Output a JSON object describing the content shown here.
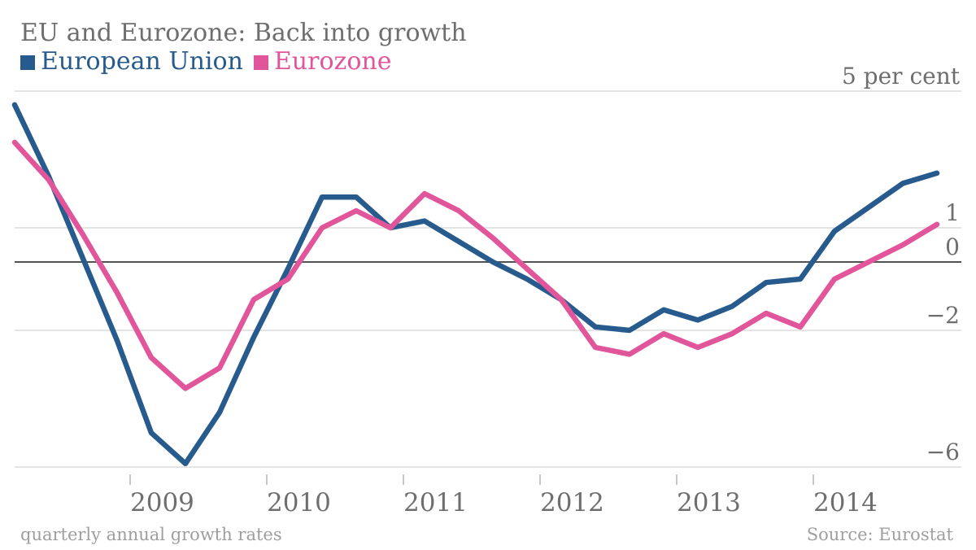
{
  "title": "EU and Eurozone: Back into growth",
  "legend": {
    "items": [
      {
        "label": "European Union",
        "color": "#275b8d"
      },
      {
        "label": "Eurozone",
        "color": "#e1559b"
      }
    ]
  },
  "footer": {
    "left_note": "quarterly annual growth rates",
    "right_source": "Source: Eurostat"
  },
  "colors": {
    "eu_blue": "#275b8d",
    "eurozone_pink": "#e1559b",
    "text_gray": "#6e6e6e",
    "footer_gray": "#9e9e9e",
    "gridline": "#e4e4e4",
    "zero_line": "#525252",
    "tick": "#c9c9c9"
  },
  "chart_data": {
    "type": "line",
    "title": "EU and Eurozone: Back into growth",
    "x_note": "quarterly annual growth rates",
    "source": "Source: Eurostat",
    "grid": "horizontal-only",
    "legend_position": "top-left",
    "categories": [
      "2008 Q1",
      "2008 Q2",
      "2008 Q3",
      "2008 Q4",
      "2009 Q1",
      "2009 Q2",
      "2009 Q3",
      "2009 Q4",
      "2010 Q1",
      "2010 Q2",
      "2010 Q3",
      "2010 Q4",
      "2011 Q1",
      "2011 Q2",
      "2011 Q3",
      "2011 Q4",
      "2012 Q1",
      "2012 Q2",
      "2012 Q3",
      "2012 Q4",
      "2013 Q1",
      "2013 Q2",
      "2013 Q3",
      "2013 Q4",
      "2014 Q1",
      "2014 Q2",
      "2014 Q3",
      "2014 Q4"
    ],
    "series": [
      {
        "name": "European Union",
        "color": "#275b8d",
        "values": [
          4.6,
          2.5,
          0.1,
          -2.3,
          -5.0,
          -5.9,
          -4.4,
          -2.2,
          -0.2,
          1.9,
          1.9,
          1.0,
          1.2,
          0.6,
          0.0,
          -0.5,
          -1.1,
          -1.9,
          -2.0,
          -1.4,
          -1.7,
          -1.3,
          -0.6,
          -0.5,
          0.9,
          1.6,
          2.3,
          2.6
        ]
      },
      {
        "name": "Eurozone",
        "color": "#e1559b",
        "values": [
          3.5,
          2.4,
          0.8,
          -0.9,
          -2.8,
          -3.7,
          -3.1,
          -1.1,
          -0.5,
          1.0,
          1.5,
          1.0,
          2.0,
          1.5,
          0.7,
          -0.2,
          -1.1,
          -2.5,
          -2.7,
          -2.1,
          -2.5,
          -2.1,
          -1.5,
          -1.9,
          -0.5,
          0.0,
          0.5,
          1.1
        ]
      }
    ],
    "x_year_ticks": [
      "2009",
      "2010",
      "2011",
      "2012",
      "2013",
      "2014"
    ],
    "y_ticks": [
      {
        "label": "5 per cent",
        "value": 5
      },
      {
        "label": "1",
        "value": 1
      },
      {
        "label": "0",
        "value": 0
      },
      {
        "label": "−2",
        "value": -2
      },
      {
        "label": "−6",
        "value": -6
      }
    ],
    "ylim": [
      -6.1,
      5.0
    ],
    "unit": "per cent"
  }
}
